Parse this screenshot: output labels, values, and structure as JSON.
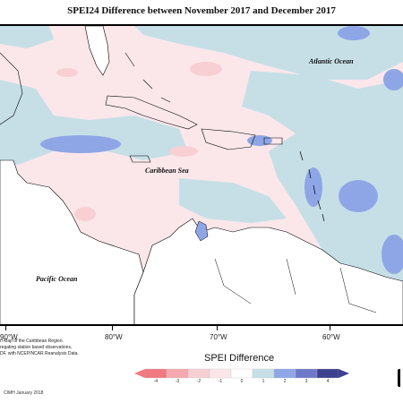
{
  "title": "SPEI24 Difference between November 2017 and December 2017",
  "labels": {
    "atlantic": "Atlantic Ocean",
    "caribbean": "Caribbean Sea",
    "pacific": "Pacific Ocean"
  },
  "longitudes": [
    "90°W",
    "80°W",
    "70°W",
    "60°W"
  ],
  "credits": {
    "lines": [
      "n Map of the Caribbean Region.",
      "regating station based observations,",
      "DF, with NCEP/NCAR Reanalysis Data."
    ],
    "footer": "CIMH January 2018"
  },
  "legend": {
    "title": "SPEI Difference",
    "ticks": [
      "-4",
      "-3",
      "-2",
      "-1",
      "0",
      "1",
      "2",
      "3",
      "4"
    ],
    "colors": [
      "#f07a80",
      "#f5a9ae",
      "#f8cfd3",
      "#fbe7ea",
      "#ffffff",
      "#c6dfe7",
      "#8ea6e6",
      "#6f79c9",
      "#3d3f8f"
    ]
  },
  "colors": {
    "land": "#ffffff",
    "pink_anomaly": "#fbe7ea",
    "blue_anomaly": "#c6dfe7",
    "blue_strong": "#8ea6e6"
  }
}
